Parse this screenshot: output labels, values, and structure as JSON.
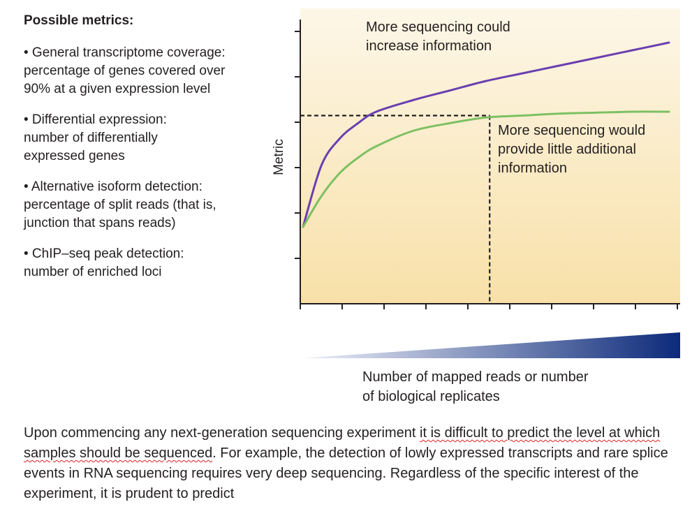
{
  "sidebar": {
    "heading": "Possible metrics:",
    "items": [
      {
        "lines": [
          "• General transcriptome coverage:",
          "percentage of genes covered over",
          "90% at a given expression level"
        ]
      },
      {
        "lines": [
          "• Differential expression:",
          "number of differentially",
          "expressed genes"
        ]
      },
      {
        "lines": [
          "• Alternative isoform detection:",
          "percentage of split reads (that is,",
          "junction that spans reads)"
        ]
      },
      {
        "lines": [
          "• ChIP–seq peak detection:",
          "number of enriched loci"
        ]
      }
    ]
  },
  "chart_data": {
    "type": "line",
    "title": "",
    "xlabel": [
      "Number of mapped reads or number",
      "of biological replicates"
    ],
    "ylabel": "Metric",
    "series": [
      {
        "color": "#6a3fb0",
        "x": [
          0,
          0.05,
          0.1,
          0.15,
          0.2,
          0.3,
          0.4,
          0.5,
          0.6,
          0.7,
          0.8,
          0.9,
          1.0
        ],
        "y": [
          0.12,
          0.44,
          0.58,
          0.66,
          0.72,
          0.78,
          0.83,
          0.88,
          0.92,
          0.96,
          1.0,
          1.04,
          1.08
        ]
      },
      {
        "color": "#7dc063",
        "x": [
          0,
          0.05,
          0.1,
          0.15,
          0.2,
          0.3,
          0.4,
          0.5,
          0.6,
          0.7,
          0.8,
          0.9,
          1.0
        ],
        "y": [
          0.12,
          0.28,
          0.4,
          0.48,
          0.54,
          0.62,
          0.66,
          0.69,
          0.7,
          0.71,
          0.715,
          0.72,
          0.72
        ]
      }
    ],
    "annotations": [
      {
        "text": [
          "More sequencing could",
          "increase information"
        ]
      },
      {
        "text": [
          "More sequencing would",
          "provide little additional",
          "information"
        ]
      }
    ],
    "reference_x": 0.51,
    "reference_y": 0.7,
    "grid": false,
    "background_gradient": [
      "#fdf7e8",
      "#f8e0a8"
    ],
    "wedge_colors": [
      "#f0f2fa",
      "#0c2a7a"
    ]
  },
  "body_text": {
    "part1": "Upon commencing any next-generation sequencing experiment ",
    "underlined": "it is difficult to predict the level at which samples should be sequenced",
    "part2": ". For example, the detection of lowly expressed transcripts and rare splice events in RNA sequencing requires very deep sequencing. Regardless of the specific interest of the experiment, it is prudent to predict"
  }
}
